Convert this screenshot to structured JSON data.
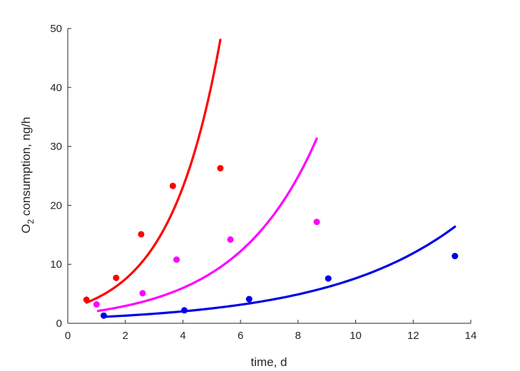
{
  "chart_data": {
    "type": "scatter",
    "xlabel": "time, d",
    "ylabel_main": "O",
    "ylabel_sub": "2",
    "ylabel_rest": " consumption, ng/h",
    "xlim": [
      0,
      14
    ],
    "ylim": [
      0,
      50
    ],
    "xticks": [
      0,
      2,
      4,
      6,
      8,
      10,
      12,
      14
    ],
    "yticks": [
      0,
      10,
      20,
      30,
      40,
      50
    ],
    "grid": false,
    "series": [
      {
        "color": "#ff0000",
        "points": [
          [
            0.65,
            4.0
          ],
          [
            1.68,
            7.7
          ],
          [
            2.55,
            15.1
          ],
          [
            3.65,
            23.3
          ],
          [
            5.3,
            26.3
          ]
        ],
        "curve": {
          "x0": 0.65,
          "a": 3.5,
          "b": 0.5635,
          "xmin": 0.65,
          "xmax": 5.3
        }
      },
      {
        "color": "#ff00ff",
        "points": [
          [
            1.0,
            3.2
          ],
          [
            2.6,
            5.1
          ],
          [
            3.78,
            10.8
          ],
          [
            5.65,
            14.2
          ],
          [
            8.65,
            17.2
          ]
        ],
        "curve": {
          "x0": 1.05,
          "a": 2.1,
          "b": 0.3556,
          "xmin": 1.05,
          "xmax": 8.65
        }
      },
      {
        "color": "#0000e6",
        "points": [
          [
            1.25,
            1.3
          ],
          [
            4.05,
            2.2
          ],
          [
            6.3,
            4.1
          ],
          [
            9.05,
            7.6
          ],
          [
            13.45,
            11.4
          ]
        ],
        "curve": {
          "x0": 1.25,
          "a": 1.1,
          "b": 0.2214,
          "xmin": 1.25,
          "xmax": 13.45
        }
      }
    ]
  }
}
